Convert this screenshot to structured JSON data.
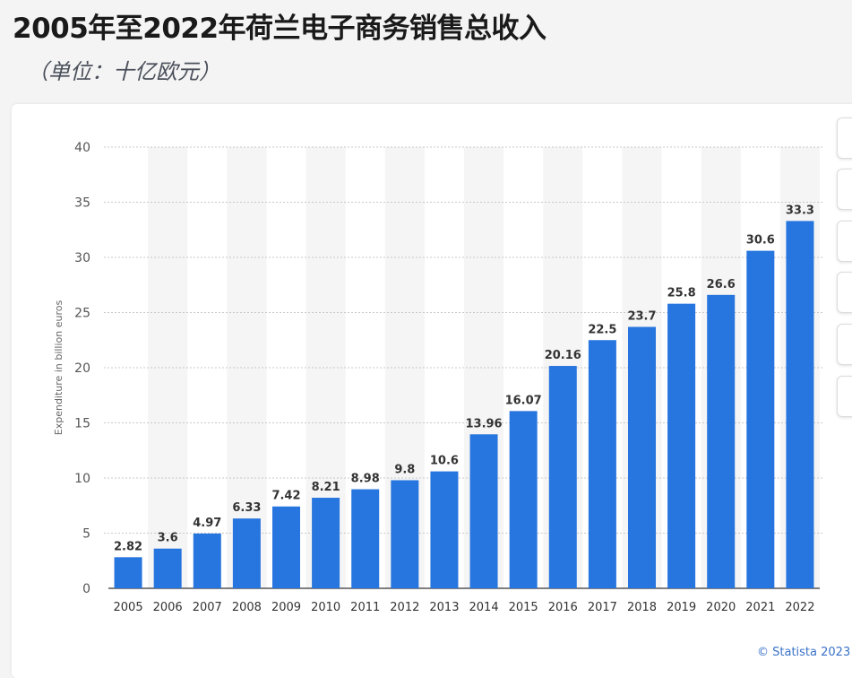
{
  "title": "2005年至2022年荷兰电子商务销售总收入",
  "subtitle": "（单位：十亿欧元）",
  "credit": "© Statista 2023",
  "colors": {
    "bar": "#2775de",
    "grid": "#c8c8c8",
    "band": "#f5f5f5"
  },
  "side_toolbar": {
    "icons": [
      "notification-icon",
      "star-icon",
      "settings-icon",
      "share-icon",
      "quote-icon",
      "print-icon"
    ]
  },
  "chart_data": {
    "type": "bar",
    "title": "",
    "xlabel": "",
    "ylabel": "Expenditure in billion euros",
    "ylim": [
      0,
      40
    ],
    "yticks": [
      0,
      5,
      10,
      15,
      20,
      25,
      30,
      35,
      40
    ],
    "categories": [
      "2005",
      "2006",
      "2007",
      "2008",
      "2009",
      "2010",
      "2011",
      "2012",
      "2013",
      "2014",
      "2015",
      "2016",
      "2017",
      "2018",
      "2019",
      "2020",
      "2021",
      "2022"
    ],
    "values": [
      2.82,
      3.6,
      4.97,
      6.33,
      7.42,
      8.21,
      8.98,
      9.8,
      10.6,
      13.96,
      16.07,
      20.16,
      22.5,
      23.7,
      25.8,
      26.6,
      30.6,
      33.3
    ],
    "value_labels": [
      "2.82",
      "3.6",
      "4.97",
      "6.33",
      "7.42",
      "8.21",
      "8.98",
      "9.8",
      "10.6",
      "13.96",
      "16.07",
      "20.16",
      "22.5",
      "23.7",
      "25.8",
      "26.6",
      "30.6",
      "33.3"
    ],
    "grid": true
  }
}
